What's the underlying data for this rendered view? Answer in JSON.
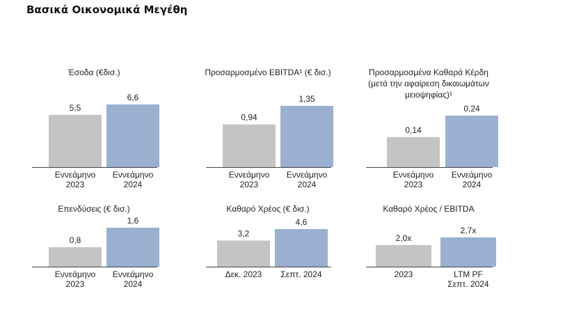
{
  "page": {
    "title": "Βασικά Οικονομικά Μεγέθη"
  },
  "chart_data": [
    {
      "type": "bar",
      "title": [
        "Έσοδα (€δισ.)"
      ],
      "categories": [
        [
          "Εννεάμηνο",
          "2023"
        ],
        [
          "Εννεάμηνο",
          "2024"
        ]
      ],
      "values": [
        5.5,
        6.6
      ],
      "labels": [
        "5,5",
        "6,6"
      ],
      "ylim": [
        0,
        6.6
      ]
    },
    {
      "type": "bar",
      "title": [
        "Προσαρμοσμένο EBITDA¹ (€ δισ.)"
      ],
      "categories": [
        [
          "Εννεάμηνο",
          "2023"
        ],
        [
          "Εννεάμηνο",
          "2024"
        ]
      ],
      "values": [
        0.94,
        1.35
      ],
      "labels": [
        "0,94",
        "1,35"
      ],
      "ylim": [
        0,
        1.35
      ]
    },
    {
      "type": "bar",
      "title": [
        "Προσαρμοσμένα Καθαρά Κέρδη",
        "(μετά την αφαίρεση δικαιωμάτων",
        "μειοψηφίας)¹"
      ],
      "categories": [
        [
          "Εννεάμηνο",
          "2023"
        ],
        [
          "Εννεάμηνο",
          "2024"
        ]
      ],
      "values": [
        0.14,
        0.24
      ],
      "labels": [
        "0,14",
        "0,24"
      ],
      "ylim": [
        0,
        0.24
      ]
    },
    {
      "type": "bar",
      "title": [
        "Επενδύσεις (€ δισ.)"
      ],
      "categories": [
        [
          "Εννεάμηνο",
          "2023"
        ],
        [
          "Εννεάμηνο",
          "2024"
        ]
      ],
      "values": [
        0.8,
        1.6
      ],
      "labels": [
        "0,8",
        "1,6"
      ],
      "ylim": [
        0,
        1.6
      ]
    },
    {
      "type": "bar",
      "title": [
        "Καθαρό Χρέος (€ δισ.)"
      ],
      "categories": [
        [
          "Δεκ. 2023"
        ],
        [
          "Σεπτ. 2024"
        ]
      ],
      "values": [
        3.2,
        4.6
      ],
      "labels": [
        "3,2",
        "4,6"
      ],
      "ylim": [
        0,
        4.6
      ]
    },
    {
      "type": "bar",
      "title": [
        "Καθαρό Χρέος / EBITDA"
      ],
      "categories": [
        [
          "2023"
        ],
        [
          "LTM PF",
          "Σεπτ. 2024"
        ]
      ],
      "values": [
        2.0,
        2.7
      ],
      "labels": [
        "2,0x",
        "2,7x"
      ],
      "ylim": [
        0,
        2.7
      ]
    }
  ],
  "colors": {
    "bar_prior": "#c4c4c4",
    "bar_current": "#9bb0d0",
    "axis": "#444444"
  }
}
